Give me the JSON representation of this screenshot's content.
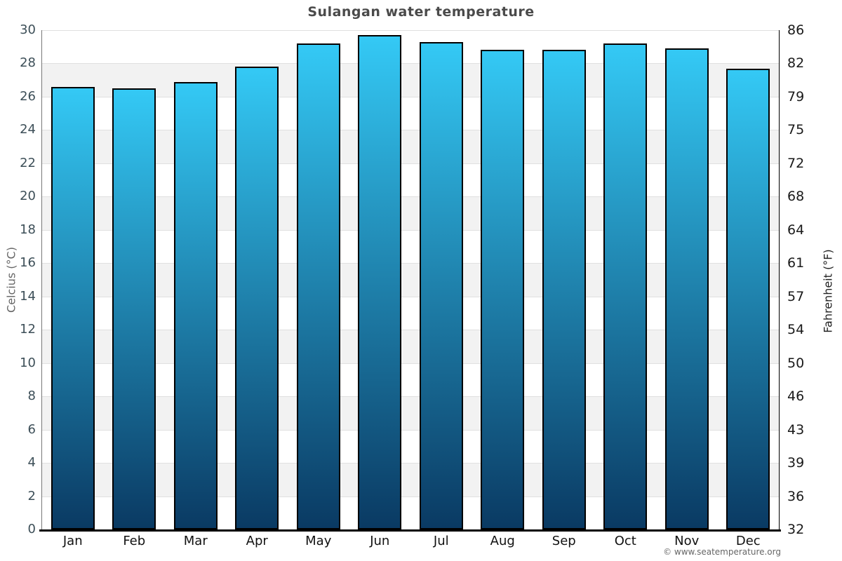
{
  "title": "Sulangan water temperature",
  "footer_credit": "© www.seatemperature.org",
  "chart_data": {
    "type": "bar",
    "title": "Sulangan water temperature",
    "categories": [
      "Jan",
      "Feb",
      "Mar",
      "Apr",
      "May",
      "Jun",
      "Jul",
      "Aug",
      "Sep",
      "Oct",
      "Nov",
      "Dec"
    ],
    "values": [
      26.6,
      26.5,
      26.9,
      27.8,
      29.2,
      29.7,
      29.3,
      28.8,
      28.8,
      29.2,
      28.9,
      27.7
    ],
    "unit": "°C",
    "ylabel_left": "Celcius (°C)",
    "ylabel_right": "Fahrenheit (°F)",
    "xlabel": "",
    "ylim": [
      0,
      30
    ],
    "yticks_celsius": [
      0,
      2,
      4,
      6,
      8,
      10,
      12,
      14,
      16,
      18,
      20,
      22,
      24,
      26,
      28,
      30
    ],
    "yticks_fahrenheit": [
      32,
      36,
      39,
      43,
      46,
      50,
      54,
      57,
      61,
      64,
      68,
      72,
      75,
      79,
      82,
      86
    ],
    "grid": "alternating horizontal bands every 2°C",
    "legend": false
  },
  "colors": {
    "bar_gradient_top": "#34c9f5",
    "bar_gradient_bottom": "#0a3a63",
    "bar_border": "#000000",
    "band_light": "#ffffff",
    "band_gray": "#f2f2f2",
    "gridline": "#e0e0e0",
    "title_text": "#4a4a4a",
    "left_tick_text": "#3d4f58",
    "right_tick_text": "#1a1a1a",
    "footer_text": "#666666"
  }
}
